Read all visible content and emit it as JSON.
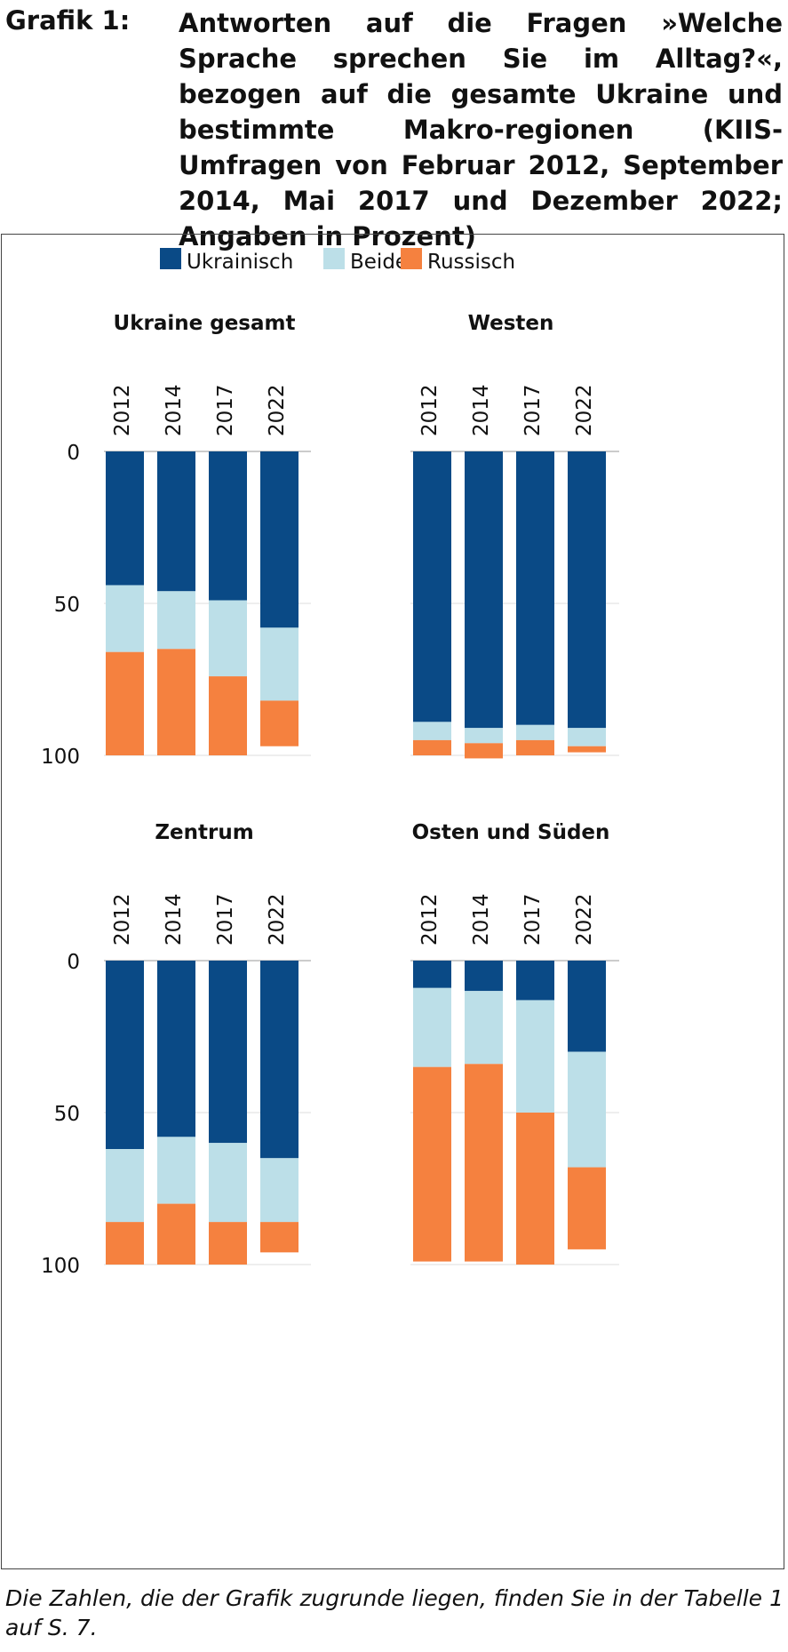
{
  "figure": {
    "label": "Grafik 1:",
    "caption": "Antworten auf die Fragen »Welche Sprache sprechen Sie im Alltag?«, bezogen auf die gesamte Ukraine und bestimmte Makro-regionen (KIIS-Umfragen von Februar 2012, September 2014, Mai 2017 und Dezember 2022; Angaben in Prozent)",
    "footnote": "Die Zahlen, die der Grafik zugrunde liegen, finden Sie in der Tabelle 1 auf S. 7."
  },
  "chart_data": {
    "type": "bar",
    "stacked": true,
    "orientation": "vertical, values increase downward",
    "legend": {
      "placement": "top-center",
      "entries": [
        "Ukrainisch",
        "Beides",
        "Russisch"
      ]
    },
    "colors": {
      "Ukrainisch": "#0a4a86",
      "Beides": "#bcdfe8",
      "Russisch": "#f5813f"
    },
    "ylim": [
      0,
      100
    ],
    "yticks": [
      0,
      50,
      100
    ],
    "grid": true,
    "panels": [
      {
        "title": "Ukraine gesamt",
        "categories": [
          "2012",
          "2014",
          "2017",
          "2022"
        ],
        "series": [
          {
            "name": "Ukrainisch",
            "values": [
              44,
              46,
              49,
              58
            ]
          },
          {
            "name": "Beides",
            "values": [
              22,
              19,
              25,
              24
            ]
          },
          {
            "name": "Russisch",
            "values": [
              34,
              35,
              26,
              15
            ]
          }
        ]
      },
      {
        "title": "Westen",
        "categories": [
          "2012",
          "2014",
          "2017",
          "2022"
        ],
        "series": [
          {
            "name": "Ukrainisch",
            "values": [
              89,
              91,
              90,
              91
            ]
          },
          {
            "name": "Beides",
            "values": [
              6,
              5,
              5,
              6
            ]
          },
          {
            "name": "Russisch",
            "values": [
              5,
              5,
              5,
              2
            ]
          }
        ]
      },
      {
        "title": "Zentrum",
        "categories": [
          "2012",
          "2014",
          "2017",
          "2022"
        ],
        "series": [
          {
            "name": "Ukrainisch",
            "values": [
              62,
              58,
              60,
              65
            ]
          },
          {
            "name": "Beides",
            "values": [
              24,
              22,
              26,
              21
            ]
          },
          {
            "name": "Russisch",
            "values": [
              14,
              20,
              14,
              10
            ]
          }
        ]
      },
      {
        "title": "Osten und Süden",
        "categories": [
          "2012",
          "2014",
          "2017",
          "2022"
        ],
        "series": [
          {
            "name": "Ukrainisch",
            "values": [
              9,
              10,
              13,
              30
            ]
          },
          {
            "name": "Beides",
            "values": [
              26,
              24,
              37,
              38
            ]
          },
          {
            "name": "Russisch",
            "values": [
              64,
              65,
              50,
              27
            ]
          }
        ]
      }
    ]
  }
}
